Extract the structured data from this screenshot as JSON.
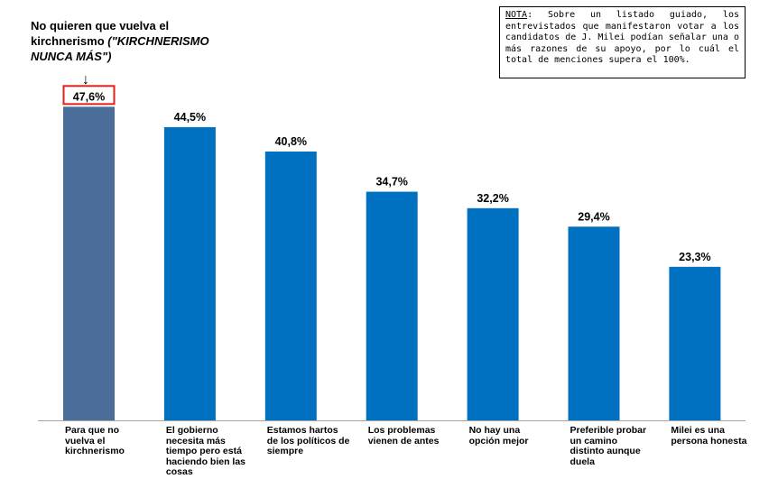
{
  "annotation": {
    "text": "No quieren que vuelva el kirchnerismo",
    "italic": "(\"KIRCHNERISMO NUNCA MÁS\")",
    "arrow": "↓"
  },
  "note": {
    "label": "NOTA",
    "text": ": Sobre un listado guiado, los entrevistados que manifestaron votar a los candidatos de J. Milei podían señalar una o más razones de su apoyo, por lo cuál el total de menciones supera el 100%."
  },
  "chart_data": {
    "type": "bar",
    "categories": [
      "Para que no vuelva el kirchnerismo",
      "El gobierno necesita más tiempo pero está haciendo bien las cosas",
      "Estamos hartos de los políticos de siempre",
      "Los problemas vienen de antes",
      "No hay una opción mejor",
      "Preferible probar un camino distinto aunque duela",
      "Milei es una persona honesta"
    ],
    "values": [
      47.6,
      44.5,
      40.8,
      34.7,
      32.2,
      29.4,
      23.3
    ],
    "value_labels": [
      "47,6%",
      "44,5%",
      "40,8%",
      "34,7%",
      "32,2%",
      "29,4%",
      "23,3%"
    ],
    "highlighted_index": 0,
    "ylim": [
      0,
      50
    ],
    "grid": false,
    "colors": {
      "bar": "#0070C0",
      "highlight_bar": "#4A6D9A",
      "highlight_box": "#E0201B",
      "axis": "#A6A6A6"
    }
  }
}
